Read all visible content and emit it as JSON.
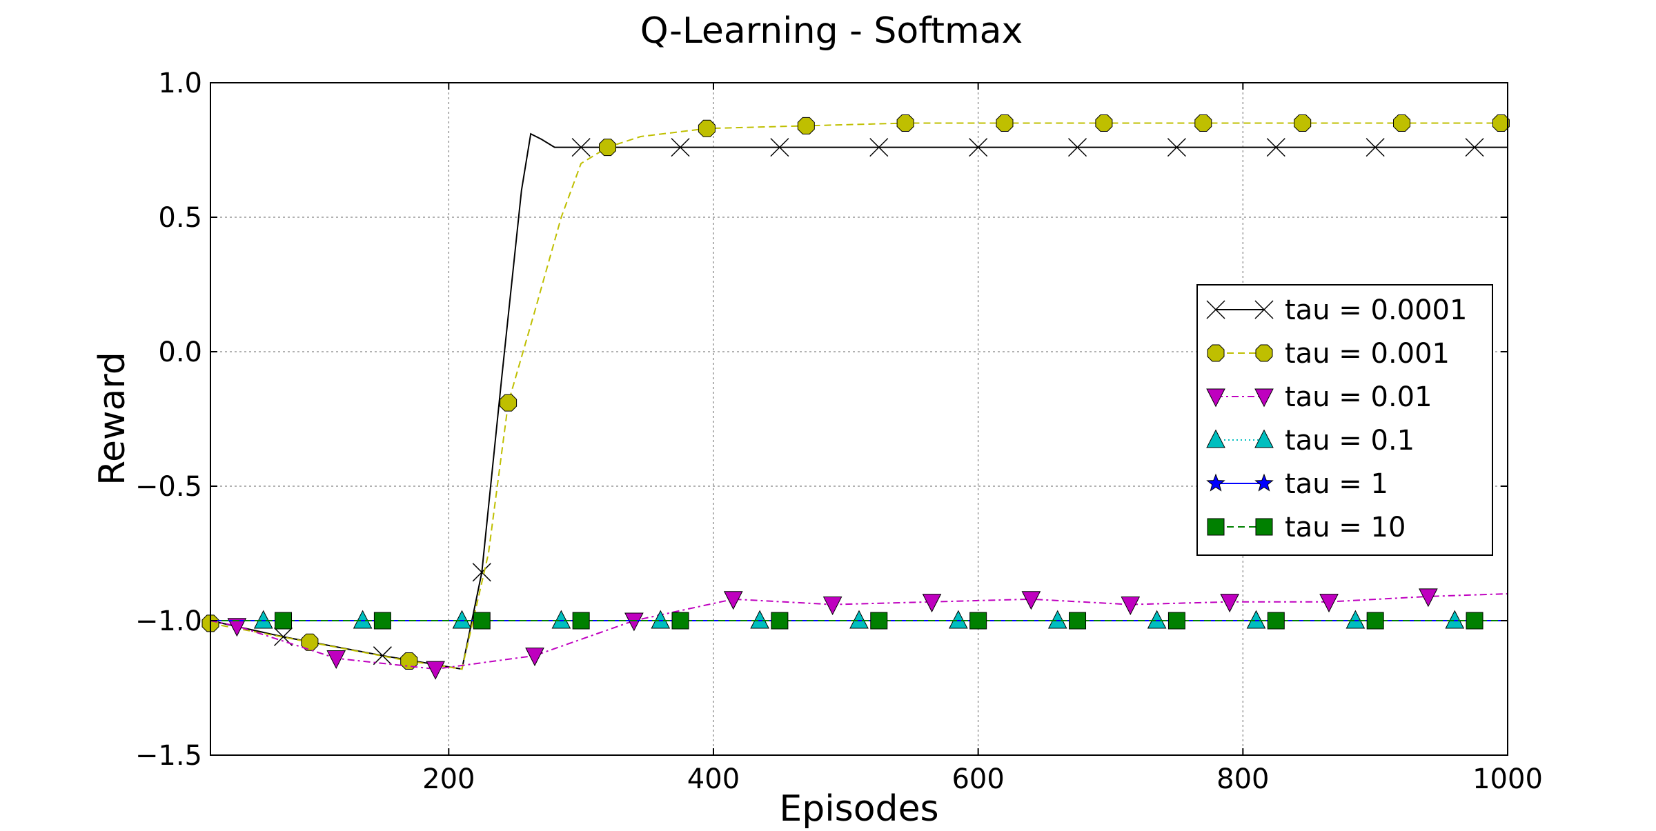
{
  "chart_data": {
    "type": "line",
    "title": "Q-Learning - Softmax",
    "xlabel": "Episodes",
    "ylabel": "Reward",
    "xlim": [
      20,
      1000
    ],
    "ylim": [
      -1.5,
      1.0
    ],
    "xticks": [
      200,
      400,
      600,
      800,
      1000
    ],
    "xtick_labels": [
      "200",
      "400",
      "600",
      "800",
      "1000"
    ],
    "yticks": [
      -1.5,
      -1.0,
      -0.5,
      0.0,
      0.5,
      1.0
    ],
    "ytick_labels": [
      "−1.5",
      "−1.0",
      "−0.5",
      "0.0",
      "0.5",
      "1.0"
    ],
    "grid": true,
    "legend_position": "right",
    "series": [
      {
        "name": "tau = 0.0001",
        "color": "#000000",
        "marker": "x",
        "dash": "solid",
        "x": [
          20,
          75,
          150,
          210,
          225,
          240,
          255,
          262,
          270,
          280,
          300,
          375,
          450,
          525,
          600,
          675,
          750,
          825,
          900,
          975,
          1000
        ],
        "y": [
          -1.0,
          -1.06,
          -1.13,
          -1.18,
          -0.82,
          -0.1,
          0.6,
          0.81,
          0.79,
          0.76,
          0.76,
          0.76,
          0.76,
          0.76,
          0.76,
          0.76,
          0.76,
          0.76,
          0.76,
          0.76,
          0.76
        ],
        "marker_x": [
          75,
          150,
          225,
          300,
          375,
          450,
          525,
          600,
          675,
          750,
          825,
          900,
          975
        ]
      },
      {
        "name": "tau = 0.001",
        "color": "#bfbf00",
        "marker": "octagon",
        "dash": "dashed",
        "x": [
          20,
          95,
          170,
          210,
          230,
          245,
          265,
          285,
          300,
          320,
          345,
          395,
          470,
          545,
          620,
          695,
          770,
          845,
          920,
          995,
          1000
        ],
        "y": [
          -1.01,
          -1.08,
          -1.15,
          -1.18,
          -0.75,
          -0.19,
          0.15,
          0.5,
          0.7,
          0.76,
          0.8,
          0.83,
          0.84,
          0.85,
          0.85,
          0.85,
          0.85,
          0.85,
          0.85,
          0.85,
          0.85
        ],
        "marker_x": [
          20,
          95,
          170,
          245,
          320,
          395,
          470,
          545,
          620,
          695,
          770,
          845,
          920,
          995
        ]
      },
      {
        "name": "tau = 0.01",
        "color": "#bf00bf",
        "marker": "triangle-down",
        "dash": "dashdot",
        "x": [
          20,
          40,
          115,
          190,
          265,
          340,
          415,
          490,
          565,
          640,
          715,
          790,
          865,
          940,
          1000
        ],
        "y": [
          -1.0,
          -1.02,
          -1.14,
          -1.18,
          -1.13,
          -1.0,
          -0.92,
          -0.94,
          -0.93,
          -0.92,
          -0.94,
          -0.93,
          -0.93,
          -0.91,
          -0.9
        ],
        "marker_x": [
          40,
          115,
          190,
          265,
          340,
          415,
          490,
          565,
          640,
          715,
          790,
          865,
          940
        ]
      },
      {
        "name": "tau = 0.1",
        "color": "#00bfbf",
        "marker": "triangle-up",
        "dash": "dotted",
        "x": [
          20,
          1000
        ],
        "y": [
          -1.0,
          -1.0
        ],
        "marker_x": [
          60,
          135,
          210,
          285,
          360,
          435,
          510,
          585,
          660,
          735,
          810,
          885,
          960
        ]
      },
      {
        "name": "tau = 1",
        "color": "#0000ff",
        "marker": "star",
        "dash": "solid",
        "x": [
          20,
          1000
        ],
        "y": [
          -1.0,
          -1.0
        ],
        "marker_x": []
      },
      {
        "name": "tau = 10",
        "color": "#008000",
        "marker": "square",
        "dash": "dashed",
        "x": [
          20,
          1000
        ],
        "y": [
          -1.0,
          -1.0
        ],
        "marker_x": [
          75,
          150,
          225,
          300,
          375,
          450,
          525,
          600,
          675,
          750,
          825,
          900,
          975
        ]
      }
    ]
  }
}
